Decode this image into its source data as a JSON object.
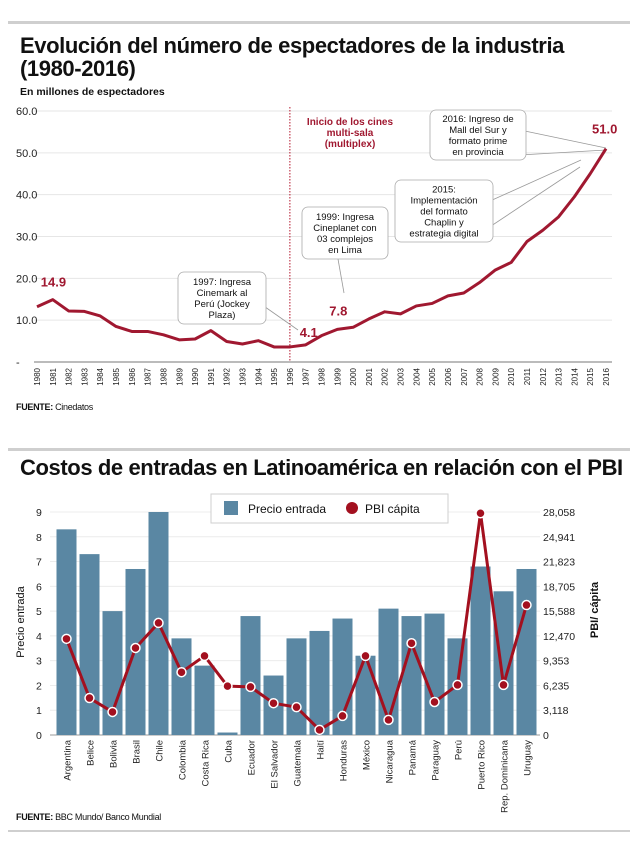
{
  "chart_data": [
    {
      "type": "line",
      "title": "Evolución del número de espectadores de la industria (1980-2016)",
      "subtitle": "En millones de espectadores",
      "source_label": "FUENTE:",
      "source_text": "Cinedatos",
      "xlabel": "",
      "ylabel": "",
      "ylim": [
        0,
        60
      ],
      "yticks": [
        0,
        10,
        20,
        30,
        40,
        50,
        60
      ],
      "ytick_labels": [
        "-",
        "10.0",
        "20.0",
        "30.0",
        "40.0",
        "50.0",
        "60.0"
      ],
      "grid": true,
      "x": [
        "1980",
        "1981",
        "1982",
        "1983",
        "1984",
        "1985",
        "1986",
        "1987",
        "1988",
        "1989",
        "1990",
        "1991",
        "1992",
        "1993",
        "1994",
        "1995",
        "1996",
        "1997",
        "1998",
        "1999",
        "2000",
        "2001",
        "2002",
        "2003",
        "2004",
        "2005",
        "2006",
        "2007",
        "2008",
        "2009",
        "2010",
        "2011",
        "2012",
        "2013",
        "2014",
        "2015",
        "2016"
      ],
      "series": [
        {
          "name": "Espectadores (millones)",
          "color": "#a01830",
          "values": [
            13.2,
            14.9,
            12.2,
            12.1,
            11.0,
            8.5,
            7.3,
            7.3,
            6.5,
            5.3,
            5.5,
            7.5,
            4.9,
            4.3,
            5.1,
            3.6,
            3.6,
            4.1,
            6.3,
            7.8,
            8.3,
            10.3,
            12.0,
            11.5,
            13.4,
            14.0,
            15.8,
            16.5,
            19.0,
            22.0,
            23.8,
            28.8,
            31.5,
            34.7,
            39.5,
            45.0,
            51.0
          ]
        }
      ],
      "data_labels": [
        {
          "x": "1981",
          "text": "14.9"
        },
        {
          "x": "1997",
          "text": "4.1"
        },
        {
          "x": "1999",
          "text": "7.8"
        },
        {
          "x": "2016",
          "text": "51.0"
        }
      ],
      "marker_line": {
        "x": "1996",
        "label_lines": [
          "Inicio de los cines",
          "multi-sala",
          "(multiplex)"
        ]
      },
      "annotations": [
        {
          "x": "1997",
          "lines": [
            "1997: Ingresa",
            "Cinemark al",
            "Perú (Jockey",
            "Plaza)"
          ]
        },
        {
          "x": "1999",
          "lines": [
            "1999: Ingresa",
            "Cineplanet con",
            "03 complejos",
            "en Lima"
          ]
        },
        {
          "x": "2015",
          "lines": [
            "2015:",
            "Implementación",
            "del formato",
            "Chaplin y",
            "estrategia digital"
          ]
        },
        {
          "x": "2016",
          "lines": [
            "2016: Ingreso de",
            "Mall del Sur y",
            "formato prime",
            "en provincia"
          ]
        }
      ]
    },
    {
      "type": "bar",
      "title": "Costos de entradas en Latinoamérica en relación con el PBI",
      "source_label": "FUENTE:",
      "source_text": "BBC Mundo/ Banco Mundial",
      "ylabel": "Precio entrada",
      "y2label": "PBI/ cápita",
      "ylim": [
        0,
        9
      ],
      "yticks": [
        "0",
        "1",
        "2",
        "3",
        "4",
        "5",
        "6",
        "7",
        "8",
        "9"
      ],
      "y2lim": [
        0,
        28058
      ],
      "y2ticks": [
        "0",
        "3,118",
        "6,235",
        "9,353",
        "12,470",
        "15,588",
        "18,705",
        "21,823",
        "24,941",
        "28,058"
      ],
      "grid": true,
      "legend_position": "top-center",
      "legend": [
        {
          "name": "Precio entrada",
          "marker": "square",
          "color": "#5a87a3"
        },
        {
          "name": "PBI cápita",
          "marker": "circle",
          "color": "#a3101f"
        }
      ],
      "categories": [
        "Argentina",
        "Belice",
        "Bolivia",
        "Brasil",
        "Chile",
        "Colombia",
        "Costa Rica",
        "Cuba",
        "Ecuador",
        "El Salvador",
        "Guatemala",
        "Haití",
        "Honduras",
        "México",
        "Nicaragua",
        "Panamá",
        "Paraguay",
        "Perú",
        "Puerto Rico",
        "Rep. Dominicana",
        "Uruguay"
      ],
      "series": [
        {
          "name": "Precio entrada",
          "type": "bar",
          "axis": "left",
          "color": "#5a87a3",
          "values": [
            8.3,
            7.3,
            5.0,
            6.7,
            9.0,
            3.9,
            2.8,
            0.1,
            4.8,
            2.4,
            3.9,
            4.2,
            4.7,
            3.2,
            5.1,
            4.8,
            4.9,
            3.9,
            6.8,
            5.8,
            6.7
          ]
        },
        {
          "name": "PBI cápita",
          "type": "line",
          "axis": "right",
          "color": "#a3101f",
          "values": [
            12100,
            4650,
            2900,
            10950,
            14100,
            7900,
            9950,
            6150,
            6050,
            4000,
            3500,
            650,
            2400,
            9950,
            1900,
            11550,
            4150,
            6300,
            27900,
            6300,
            16350
          ]
        }
      ]
    }
  ]
}
